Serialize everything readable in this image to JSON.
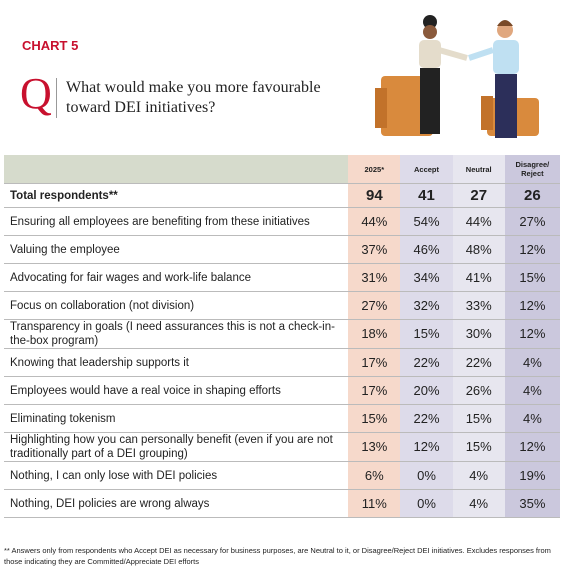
{
  "header": {
    "label": "CHART 5",
    "q": "Q",
    "question": "What would make you more favourable toward DEI initiatives?"
  },
  "table": {
    "columns": [
      "2025*",
      "Accept",
      "Neutral",
      "Disagree/ Reject"
    ],
    "rows": [
      [
        "Total respondents**",
        "94",
        "41",
        "27",
        "26"
      ],
      [
        "Ensuring all employees are benefiting from these initiatives",
        "44%",
        "54%",
        "44%",
        "27%"
      ],
      [
        "Valuing the employee",
        "37%",
        "46%",
        "48%",
        "12%"
      ],
      [
        "Advocating for fair wages and work-life balance",
        "31%",
        "34%",
        "41%",
        "15%"
      ],
      [
        "Focus on collaboration (not division)",
        "27%",
        "32%",
        "33%",
        "12%"
      ],
      [
        "Transparency in goals (I need assurances this is not a check-in-the-box program)",
        "18%",
        "15%",
        "30%",
        "12%"
      ],
      [
        "Knowing that leadership supports it",
        "17%",
        "22%",
        "22%",
        "4%"
      ],
      [
        "Employees would have a real voice in shaping efforts",
        "17%",
        "20%",
        "26%",
        "4%"
      ],
      [
        "Eliminating tokenism",
        "15%",
        "22%",
        "15%",
        "4%"
      ],
      [
        "Highlighting how you can personally benefit (even if you are not traditionally part of a DEI grouping)",
        "13%",
        "12%",
        "15%",
        "12%"
      ],
      [
        "Nothing, I can only lose with DEI policies",
        "6%",
        "0%",
        "4%",
        "19%"
      ],
      [
        "Nothing, DEI policies are wrong always",
        "11%",
        "0%",
        "4%",
        "35%"
      ]
    ]
  },
  "footnote": "** Answers only from respondents who Accept DEI as necessary for business purposes, are Neutral to it, or Disagree/Reject DEI initiatives. Excludes responses from those indicating they are Committed/Appreciate DEI efforts"
}
